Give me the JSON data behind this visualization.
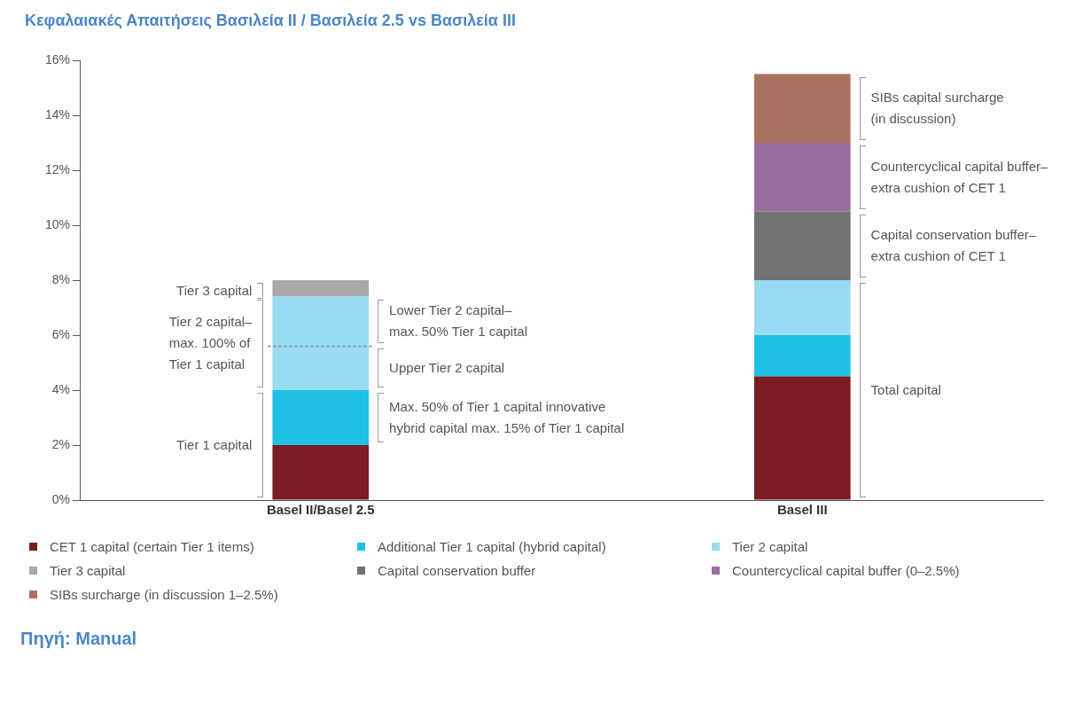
{
  "chart_data": {
    "type": "bar",
    "title": "Κεφαλαιακές Απαιτήσεις Βασιλεία II / Βασιλεία 2.5 vs Βασιλεία III",
    "categories": [
      "Basel II/Basel 2.5",
      "Basel III"
    ],
    "stacked": true,
    "series": [
      {
        "name": "CET 1 capital (certain Tier 1 items)",
        "color": "#7a1c22",
        "values": [
          2,
          4.5
        ]
      },
      {
        "name": "Additional Tier 1 capital (hybrid capital)",
        "color": "#1ec0e6",
        "values": [
          2,
          1.5
        ]
      },
      {
        "name": "Tier 2 capital",
        "color": "#99dbf0",
        "values": [
          3.4,
          2
        ]
      },
      {
        "name": "Tier 3 capital",
        "color": "#a8a8a8",
        "values": [
          0.6,
          null
        ]
      },
      {
        "name": "Capital conservation buffer",
        "color": "#707172",
        "values": [
          null,
          2.5
        ]
      },
      {
        "name": "Countercyclical capital buffer (0–2.5%)",
        "color": "#9a6e9e",
        "values": [
          null,
          2.5
        ]
      },
      {
        "name": "SIBs surcharge (in discussion 1–2.5%)",
        "color": "#a9735f",
        "values": [
          null,
          2.5
        ]
      }
    ],
    "ylim": [
      0,
      16
    ],
    "yticks": [
      {
        "value": 0,
        "label": "0%"
      },
      {
        "value": 2,
        "label": "2%"
      },
      {
        "value": 4,
        "label": "4%"
      },
      {
        "value": 6,
        "label": "6%"
      },
      {
        "value": 8,
        "label": "8%"
      },
      {
        "value": 10,
        "label": "10%"
      },
      {
        "value": 12,
        "label": "12%"
      },
      {
        "value": 14,
        "label": "14%"
      },
      {
        "value": 16,
        "label": "16%"
      }
    ],
    "grid": false,
    "legend": "bottom",
    "ref_lines": [
      {
        "axis": "y",
        "value": 5.6,
        "color": "#8a9aa8",
        "line_style": "dotted"
      }
    ],
    "annotations": [
      "Tier 3 capital",
      "Tier 2 capital–\nmax. 100% of\nTier 1 capital",
      "Tier 1 capital",
      "Lower Tier 2 capital–\nmax. 50% Tier 1 capital",
      "Upper Tier 2 capital",
      "Max. 50% of Tier 1 capital innovative\nhybrid capital max. 15% of Tier 1 capital",
      "SIBs capital surcharge\n(in discussion)",
      "Countercyclical capital buffer–\nextra cushion of CET 1",
      "Capital conservation buffer–\nextra cushion of CET 1",
      "Total capital",
      "Πηγή: Manual"
    ]
  }
}
